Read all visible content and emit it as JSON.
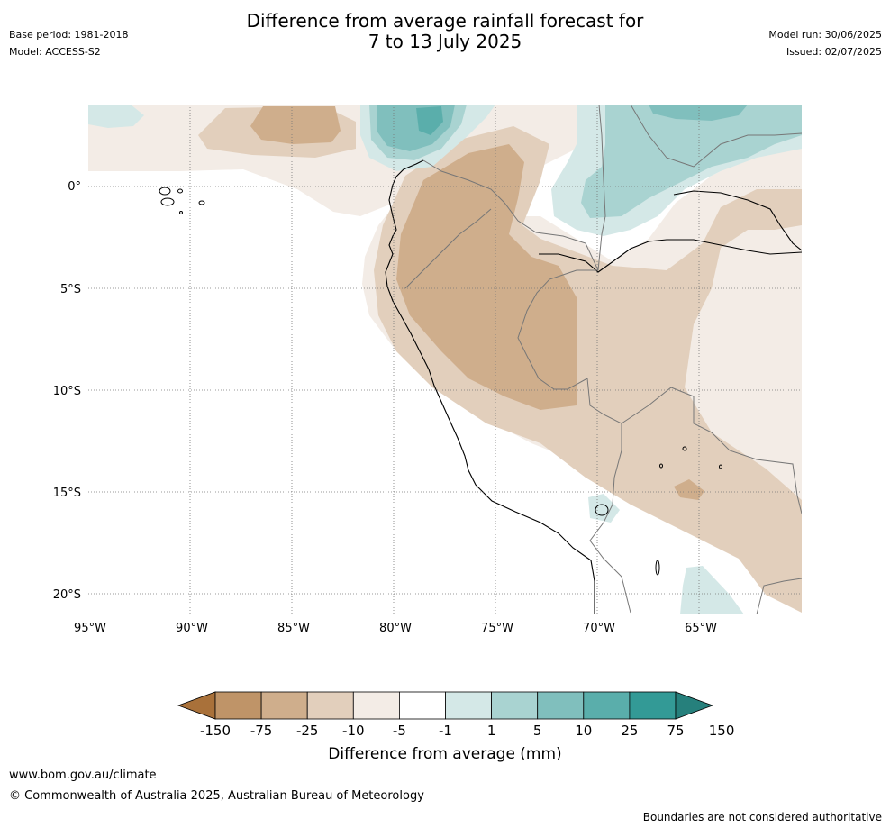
{
  "header": {
    "title_line1": "Difference from average rainfall forecast for",
    "title_line2": "7 to 13 July 2025",
    "base_period": "Base period: 1981-2018",
    "model": "Model: ACCESS-S2",
    "model_run": "Model run: 30/06/2025",
    "issued": "Issued: 02/07/2025"
  },
  "map": {
    "lat_labels": [
      "0°",
      "5°S",
      "10°S",
      "15°S",
      "20°S"
    ],
    "lon_labels": [
      "95°W",
      "90°W",
      "85°W",
      "80°W",
      "75°W",
      "70°W",
      "65°W"
    ]
  },
  "legend": {
    "title": "Difference from average (mm)",
    "ticks": [
      "-150",
      "-75",
      "-25",
      "-10",
      "-5",
      "-1",
      "1",
      "5",
      "10",
      "25",
      "75",
      "150"
    ],
    "colors": [
      "#a9713a",
      "#bf9468",
      "#cfae8c",
      "#e2cfbc",
      "#f3ece6",
      "#ffffff",
      "#d4e8e7",
      "#a9d3d1",
      "#80bfbd",
      "#5aaeab",
      "#339a96",
      "#26807c"
    ]
  },
  "footer": {
    "website": "www.bom.gov.au/climate",
    "copyright": "© Commonwealth of Australia 2025, Australian Bureau of Meteorology",
    "disclaimer": "Boundaries are not considered authoritative"
  }
}
